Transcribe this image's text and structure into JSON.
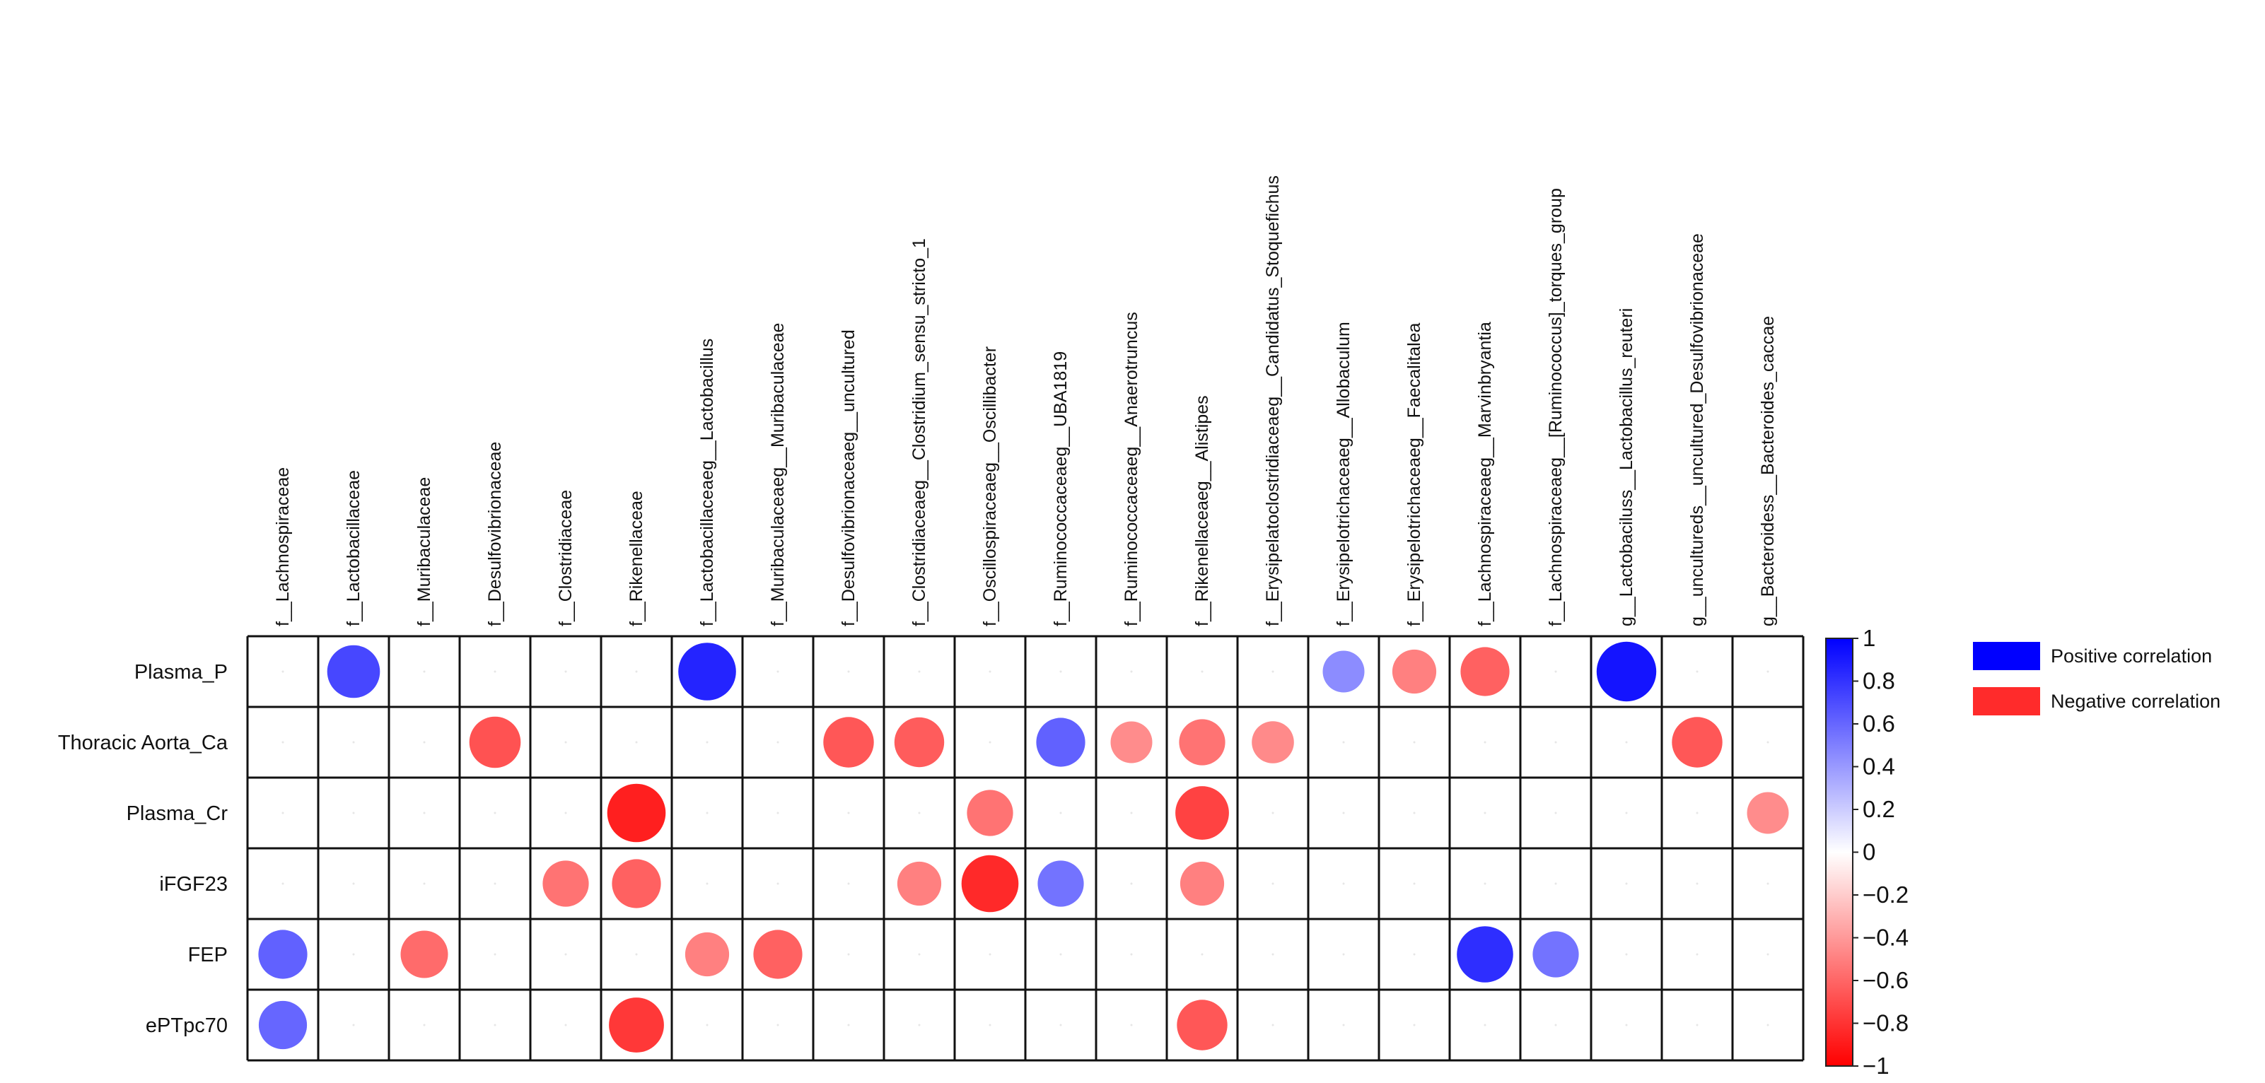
{
  "chart_data": {
    "type": "heatmap",
    "style": "correlation-dot-matrix",
    "rows": [
      "Plasma_P",
      "Thoracic Aorta_Ca",
      "Plasma_Cr",
      "iFGF23",
      "FEP",
      "ePTpc70"
    ],
    "columns": [
      "f__Lachnospiraceae",
      "f__Lactobacillaceae",
      "f__Muribaculaceae",
      "f__Desulfovibrionaceae",
      "f__Clostridiaceae",
      "f__Rikenellaceae",
      "f__Lactobacillaceaeg__Lactobacillus",
      "f__Muribaculaceaeg__Muribaculaceae",
      "f__Desulfovibrionaceaeg__uncultured",
      "f__Clostridiaceaeg__Clostridium_sensu_stricto_1",
      "f__Oscillospiraceaeg__Oscillibacter",
      "f__Ruminococcaceaeg__UBA1819",
      "f__Ruminococcaceaeg__Anaerotruncus",
      "f__Rikenellaceaeg__Alistipes",
      "f__Erysipelatoclostridiaceaeg__Candidatus_Stoquefichus",
      "f__Erysipelotrichaceaeg__Allobaculum",
      "f__Erysipelotrichaceaeg__Faecalitalea",
      "f__Lachnospiraceaeg__Marvinbryantia",
      "f__Lachnospiraceaeg__[Ruminococcus]_torques_group",
      "g__Lactobaciluss__Lactobacillus_reuteri",
      "g__uncultureds__uncultured_Desulfovibrionaceae",
      "g__Bacteroidess__Bacteroides_caccae"
    ],
    "values": [
      [
        0,
        0.72,
        0,
        0,
        0,
        0,
        0.86,
        0,
        0,
        0,
        0,
        0,
        0,
        0,
        0,
        0.45,
        -0.5,
        -0.62,
        0,
        0.92,
        0,
        0
      ],
      [
        0,
        0,
        0,
        -0.68,
        0,
        0,
        0,
        0,
        -0.66,
        -0.64,
        0,
        0.62,
        -0.45,
        -0.55,
        -0.46,
        0,
        0,
        0,
        0,
        0,
        -0.66,
        0
      ],
      [
        0,
        0,
        0,
        0,
        0,
        -0.88,
        0,
        0,
        0,
        0,
        -0.55,
        0,
        0,
        -0.74,
        0,
        0,
        0,
        0,
        0,
        0,
        0,
        -0.45
      ],
      [
        0,
        0,
        0,
        0,
        -0.55,
        -0.62,
        0,
        0,
        0,
        -0.5,
        -0.84,
        0.55,
        0,
        -0.5,
        0,
        0,
        0,
        0,
        0,
        0,
        0,
        0
      ],
      [
        0.62,
        0,
        -0.58,
        0,
        0,
        0,
        -0.5,
        -0.62,
        0,
        0,
        0,
        0,
        0,
        0,
        0,
        0,
        0,
        0.82,
        0.55,
        0,
        0,
        0
      ],
      [
        0.6,
        0,
        0,
        0,
        0,
        -0.78,
        0,
        0,
        0,
        0,
        0,
        0,
        0,
        -0.66,
        0,
        0,
        0,
        0,
        0,
        0,
        0,
        0
      ]
    ],
    "colorbar": {
      "range": [
        -1,
        1
      ],
      "ticks": [
        "1",
        "0.8",
        "0.6",
        "0.4",
        "0.2",
        "0",
        "−0.2",
        "−0.4",
        "−0.6",
        "−0.8",
        "−1"
      ],
      "colors": {
        "positive": "#0000ff",
        "zero": "#ffffff",
        "negative": "#ff0000"
      }
    },
    "legend": {
      "placement": "right",
      "items": [
        {
          "label": "Positive correlation",
          "color": "#0000ff"
        },
        {
          "label": "Negative correlation",
          "color": "#ff2b2b"
        }
      ]
    },
    "grid": true
  }
}
